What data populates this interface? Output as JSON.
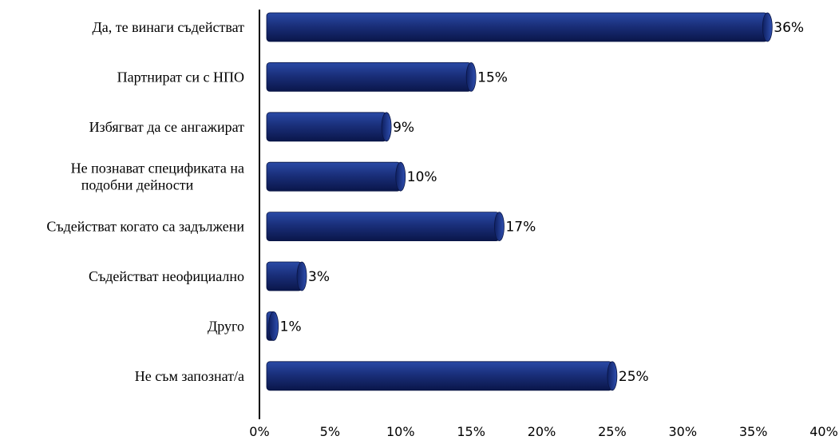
{
  "chart_data": {
    "type": "bar",
    "orientation": "horizontal",
    "categories": [
      [
        "Да, те винаги съдействат"
      ],
      [
        "Партнират си с НПО"
      ],
      [
        "Избягват да се ангажират"
      ],
      [
        "Не познават спецификата на",
        "подобни дейности"
      ],
      [
        "Съдействат когато са задължени"
      ],
      [
        "Съдействат неофициално"
      ],
      [
        "Друго"
      ],
      [
        "Не съм запознат/а"
      ]
    ],
    "values": [
      36,
      15,
      9,
      10,
      17,
      3,
      1,
      25
    ],
    "data_labels": [
      "36%",
      "15%",
      "9%",
      "10%",
      "17%",
      "3%",
      "1%",
      "25%"
    ],
    "x_ticks": [
      "0%",
      "5%",
      "10%",
      "15%",
      "20%",
      "25%",
      "30%",
      "35%",
      "40%"
    ],
    "xlim": [
      0,
      40
    ],
    "title": "",
    "xlabel": "",
    "ylabel": "",
    "grid": false,
    "legend": "none",
    "colors": {
      "bar_dark": "#0d1e5c",
      "bar_mid": "#1f3a8f",
      "bar_light": "#3a5bb8",
      "axis": "#000000"
    }
  }
}
